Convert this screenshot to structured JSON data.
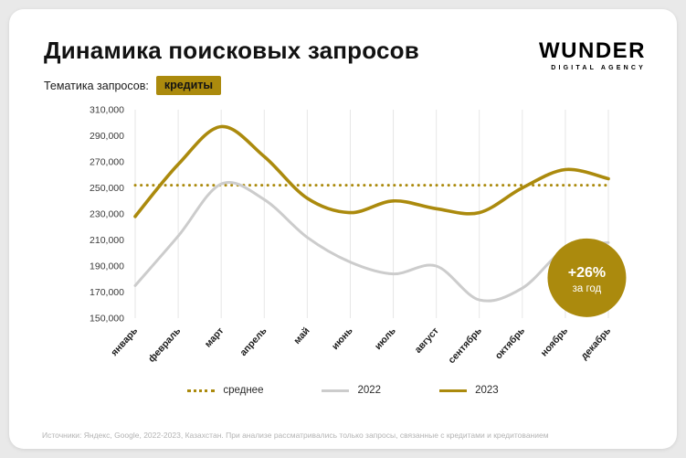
{
  "header": {
    "title": "Динамика поисковых запросов",
    "topic_label": "Тематика запросов:",
    "topic_value": "кредиты"
  },
  "logo": {
    "name": "WUNDER",
    "tagline": "DIGITAL AGENCY"
  },
  "annotation": {
    "value": "+26%",
    "caption": "за год"
  },
  "legend": {
    "items": [
      {
        "label": "среднее",
        "style": "dotted-gold"
      },
      {
        "label": "2022",
        "style": "solid-gray"
      },
      {
        "label": "2023",
        "style": "solid-gold"
      }
    ],
    "position": "bottom-center"
  },
  "footer": {
    "text": "Источники: Яндекс, Google, 2022-2023, Казахстан. При анализе рассматривались только запросы, связанные с кредитами и кредитованием"
  },
  "colors": {
    "gold": "#ab8a0d",
    "gray": "#cccccc",
    "grid": "#e6e6e6",
    "axis_text": "#3a3a3a",
    "month_text": "#1c1c1c",
    "badge_text": "#ffffff"
  },
  "chart_data": {
    "type": "line",
    "title": "Динамика поисковых запросов (кредиты)",
    "categories": [
      "январь",
      "февраль",
      "март",
      "апрель",
      "май",
      "июнь",
      "июль",
      "август",
      "сентябрь",
      "октябрь",
      "ноябрь",
      "декабрь"
    ],
    "series": [
      {
        "name": "2022",
        "color": "#cccccc",
        "values": [
          175000,
          213000,
          253000,
          241000,
          212000,
          193000,
          184000,
          190000,
          164000,
          173000,
          203000,
          208000
        ]
      },
      {
        "name": "2023",
        "color": "#ab8a0d",
        "values": [
          228000,
          268000,
          297000,
          274000,
          242000,
          231000,
          240000,
          234000,
          231000,
          250000,
          264000,
          257000
        ]
      }
    ],
    "average_line": {
      "label": "среднее",
      "value": 252000,
      "style": "dotted"
    },
    "ylim": [
      150000,
      310000
    ],
    "ytick_step": 20000,
    "grid": "vertical-only",
    "xlabel": "",
    "ylabel": "",
    "annotation": {
      "text": "+26% за год",
      "anchor_month_index": 10.5,
      "anchor_value": 181000
    }
  }
}
